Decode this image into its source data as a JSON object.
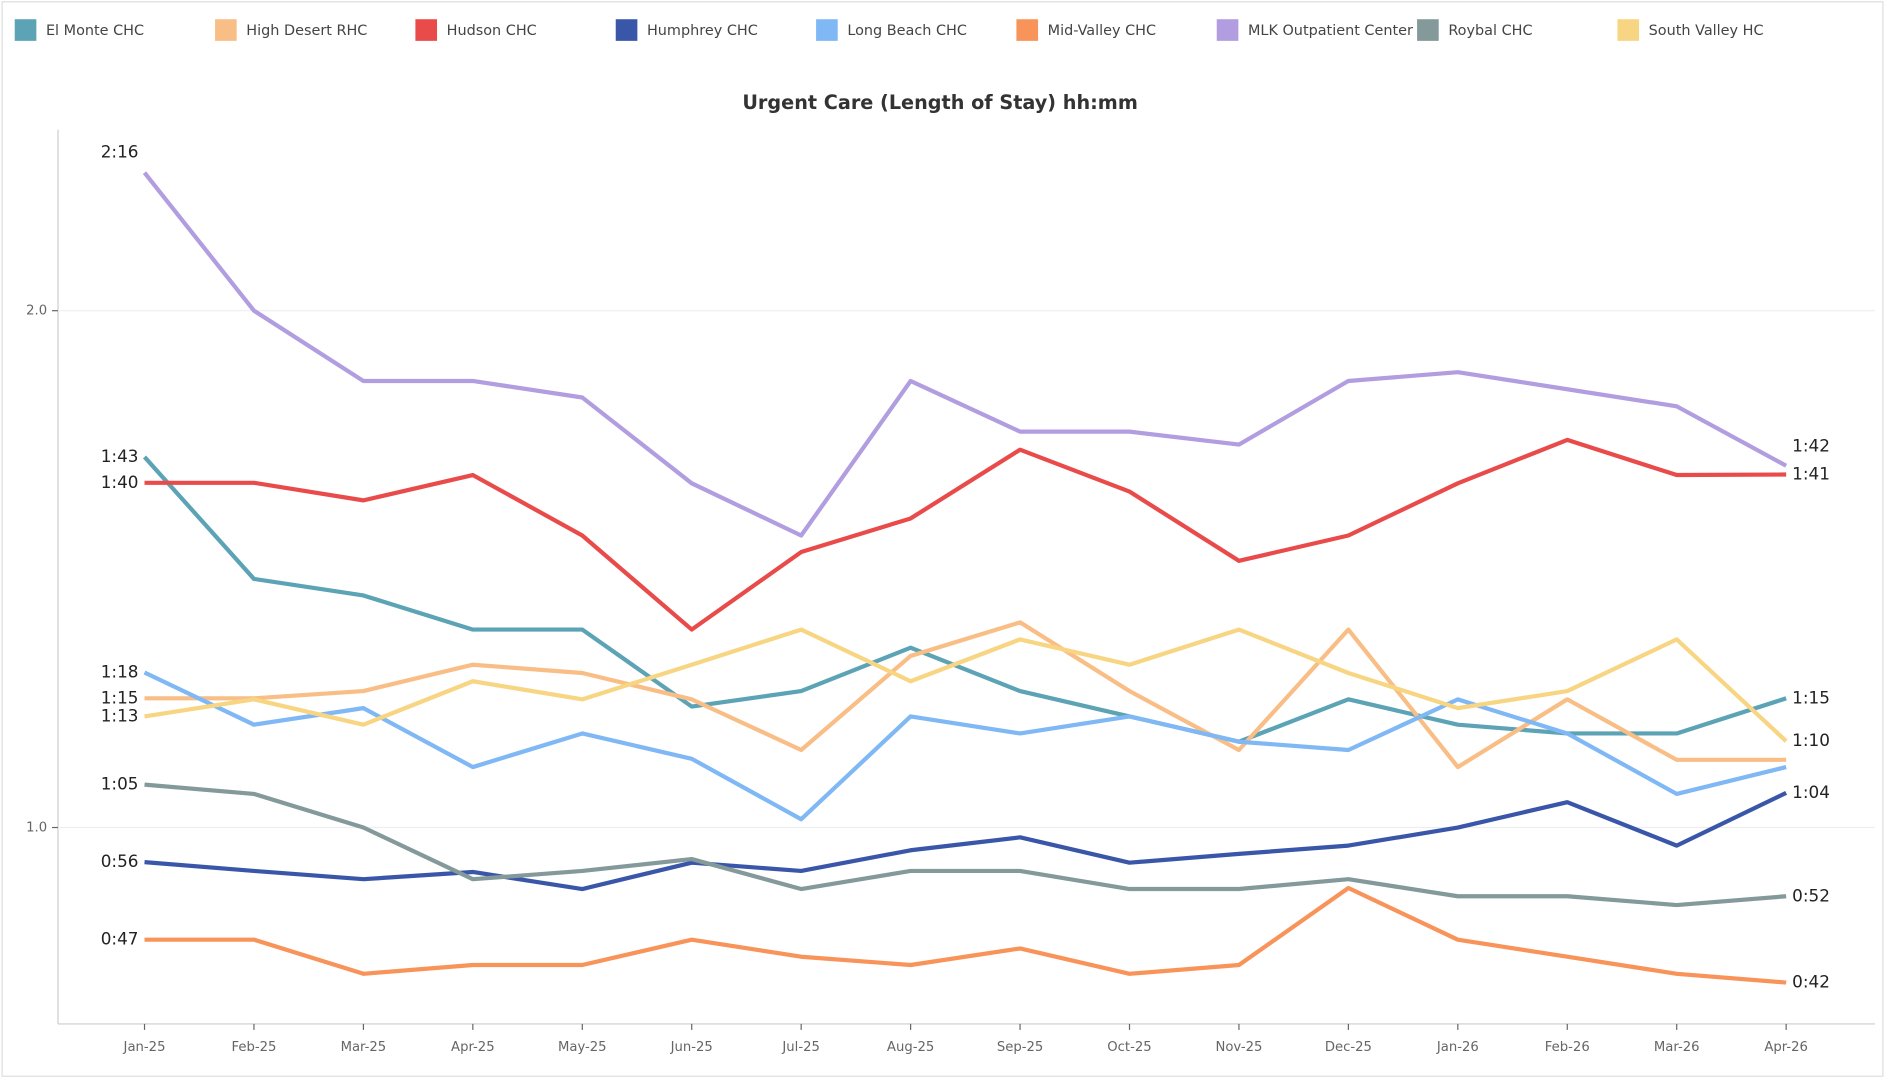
{
  "chart_data": {
    "type": "line",
    "title": "Urgent Care (Length of Stay) hh:mm",
    "categories": [
      "Jan-25",
      "Feb-25",
      "Mar-25",
      "Apr-25",
      "May-25",
      "Jun-25",
      "Jul-25",
      "Aug-25",
      "Sep-25",
      "Oct-25",
      "Nov-25",
      "Dec-25",
      "Jan-26",
      "Feb-26",
      "Mar-26",
      "Apr-26"
    ],
    "ylim": [
      0.62,
      2.35
    ],
    "yticks": [
      {
        "value": 1,
        "label": "1.0"
      },
      {
        "value": 2,
        "label": "2.0"
      }
    ],
    "grid": true,
    "legend": "top",
    "series": [
      {
        "name": "El Monte CHC",
        "color": "#5ba3b5",
        "values": [
          1.717,
          1.481,
          1.449,
          1.383,
          1.383,
          1.234,
          1.264,
          1.348,
          1.264,
          1.215,
          1.166,
          1.248,
          1.199,
          1.182,
          1.182,
          1.25
        ],
        "value_labels": [
          "1:43",
          null,
          null,
          null,
          null,
          null,
          null,
          null,
          null,
          null,
          null,
          null,
          null,
          null,
          null,
          "1:15"
        ]
      },
      {
        "name": "High Desert RHC",
        "color": "#f9be86",
        "values": [
          1.25,
          1.25,
          1.264,
          1.315,
          1.299,
          1.248,
          1.15,
          1.332,
          1.397,
          1.264,
          1.15,
          1.383,
          1.117,
          1.248,
          1.131,
          1.131
        ],
        "value_labels": [
          "1:15",
          null,
          null,
          null,
          null,
          null,
          null,
          null,
          null,
          null,
          null,
          null,
          null,
          null,
          null,
          null
        ]
      },
      {
        "name": "Hudson CHC",
        "color": "#e94b4b",
        "values": [
          1.667,
          1.667,
          1.633,
          1.682,
          1.565,
          1.383,
          1.533,
          1.598,
          1.731,
          1.65,
          1.516,
          1.565,
          1.666,
          1.75,
          1.682,
          1.683
        ],
        "value_labels": [
          "1:40",
          null,
          null,
          null,
          null,
          null,
          null,
          null,
          null,
          null,
          null,
          null,
          null,
          null,
          null,
          "1:41"
        ]
      },
      {
        "name": "Humphrey CHC",
        "color": "#3a56a8",
        "values": [
          0.933,
          0.916,
          0.9,
          0.914,
          0.881,
          0.932,
          0.916,
          0.956,
          0.981,
          0.932,
          0.949,
          0.965,
          1.0,
          1.049,
          0.965,
          1.067
        ],
        "value_labels": [
          "0:56",
          null,
          null,
          null,
          null,
          null,
          null,
          null,
          null,
          null,
          null,
          null,
          null,
          null,
          null,
          "1:04"
        ]
      },
      {
        "name": "Long Beach CHC",
        "color": "#7fb8f5",
        "values": [
          1.3,
          1.199,
          1.231,
          1.117,
          1.182,
          1.133,
          1.016,
          1.215,
          1.182,
          1.215,
          1.166,
          1.15,
          1.248,
          1.182,
          1.065,
          1.117
        ],
        "value_labels": [
          "1:18",
          null,
          null,
          null,
          null,
          null,
          null,
          null,
          null,
          null,
          null,
          null,
          null,
          null,
          null,
          null
        ]
      },
      {
        "name": "Mid-Valley CHC",
        "color": "#f8935a",
        "values": [
          0.783,
          0.783,
          0.717,
          0.734,
          0.734,
          0.783,
          0.75,
          0.734,
          0.766,
          0.717,
          0.734,
          0.883,
          0.783,
          0.75,
          0.717,
          0.7
        ],
        "value_labels": [
          "0:47",
          null,
          null,
          null,
          null,
          null,
          null,
          null,
          null,
          null,
          null,
          null,
          null,
          null,
          null,
          "0:42"
        ]
      },
      {
        "name": "MLK Outpatient Center",
        "color": "#b19ddf",
        "values": [
          2.267,
          2.0,
          1.864,
          1.864,
          1.832,
          1.666,
          1.565,
          1.864,
          1.766,
          1.766,
          1.741,
          1.864,
          1.881,
          1.848,
          1.815,
          1.7
        ],
        "value_labels": [
          "2:16",
          null,
          null,
          null,
          null,
          null,
          null,
          null,
          null,
          null,
          null,
          null,
          null,
          null,
          null,
          "1:42"
        ]
      },
      {
        "name": "Roybal CHC",
        "color": "#84999a",
        "values": [
          1.083,
          1.065,
          1.0,
          0.9,
          0.916,
          0.939,
          0.881,
          0.916,
          0.916,
          0.881,
          0.881,
          0.9,
          0.867,
          0.867,
          0.85,
          0.867
        ],
        "value_labels": [
          "1:05",
          null,
          null,
          null,
          null,
          null,
          null,
          null,
          null,
          null,
          null,
          null,
          null,
          null,
          null,
          "0:52"
        ]
      },
      {
        "name": "South Valley HC",
        "color": "#f7d582",
        "values": [
          1.215,
          1.248,
          1.199,
          1.283,
          1.248,
          1.315,
          1.383,
          1.283,
          1.364,
          1.315,
          1.383,
          1.299,
          1.231,
          1.264,
          1.364,
          1.167
        ],
        "value_labels": [
          "1:13",
          null,
          null,
          null,
          null,
          null,
          null,
          null,
          null,
          null,
          null,
          null,
          null,
          null,
          null,
          "1:10"
        ]
      }
    ]
  }
}
